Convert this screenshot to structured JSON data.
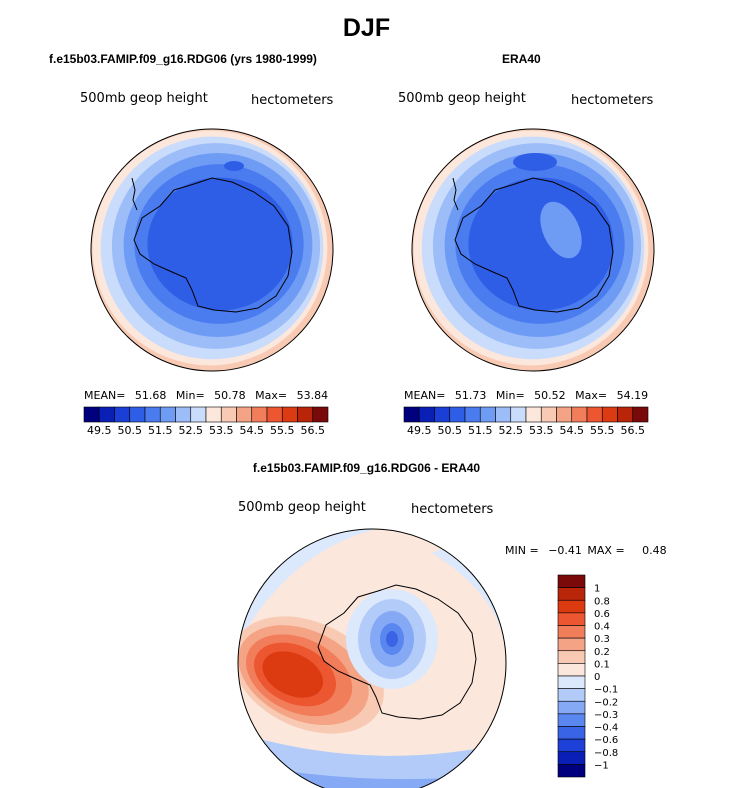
{
  "page_title": "DJF",
  "colors": {
    "abs_scale": [
      "#00007f",
      "#0a1fb5",
      "#1b3fd6",
      "#2f5ee6",
      "#4a7cef",
      "#6e9cf5",
      "#9dbdf8",
      "#cadcfb",
      "#fbe7dc",
      "#f8c9b3",
      "#f5a385",
      "#f27d5a",
      "#ec5630",
      "#dc3b12",
      "#b82508",
      "#7a0a0a"
    ],
    "diff_scale": [
      "#00007f",
      "#0a1fb5",
      "#1d40d8",
      "#3a64e6",
      "#5a86ef",
      "#86a9f5",
      "#b2cbf9",
      "#dce8fb",
      "#fbe7dc",
      "#f8c9b3",
      "#f5a385",
      "#f27d5a",
      "#ec5630",
      "#dc3b12",
      "#b82508",
      "#7a0a0a"
    ]
  },
  "chart_data": [
    {
      "type": "heatmap",
      "title": "f.e15b03.FAMIP.f09_g16.RDG06 (yrs 1980-1999)",
      "left_label": "500mb geop height",
      "right_label": "hectometers",
      "stats": {
        "mean_label": "MEAN=",
        "mean": "51.68",
        "min_label": "Min=",
        "min": "50.78",
        "max_label": "Max=",
        "max": "53.84"
      },
      "colorbar_ticks": [
        "49.5",
        "50.5",
        "51.5",
        "52.5",
        "53.5",
        "54.5",
        "55.5",
        "56.5"
      ],
      "contour_levels": [
        49.5,
        50,
        50.5,
        51,
        51.5,
        52,
        52.5,
        53,
        53.5,
        54,
        54.5,
        55,
        55.5,
        56,
        56.5
      ],
      "rings": [
        {
          "value": 53.5,
          "level_index": 8
        },
        {
          "value": 53.0,
          "level_index": 7
        },
        {
          "value": 52.5,
          "level_index": 6
        },
        {
          "value": 52.0,
          "level_index": 5
        },
        {
          "value": 51.5,
          "level_index": 4
        },
        {
          "value": 51.0,
          "level_index": 3
        }
      ]
    },
    {
      "type": "heatmap",
      "title": "ERA40",
      "left_label": "500mb geop height",
      "right_label": "hectometers",
      "stats": {
        "mean_label": "MEAN=",
        "mean": "51.73",
        "min_label": "Min=",
        "min": "50.52",
        "max_label": "Max=",
        "max": "54.19"
      },
      "colorbar_ticks": [
        "49.5",
        "50.5",
        "51.5",
        "52.5",
        "53.5",
        "54.5",
        "55.5",
        "56.5"
      ],
      "contour_levels": [
        49.5,
        50,
        50.5,
        51,
        51.5,
        52,
        52.5,
        53,
        53.5,
        54,
        54.5,
        55,
        55.5,
        56,
        56.5
      ],
      "rings": [
        {
          "value": 53.5,
          "level_index": 8
        },
        {
          "value": 53.0,
          "level_index": 7
        },
        {
          "value": 52.5,
          "level_index": 6
        },
        {
          "value": 52.0,
          "level_index": 5
        },
        {
          "value": 51.5,
          "level_index": 4
        },
        {
          "value": 51.0,
          "level_index": 3
        }
      ]
    },
    {
      "type": "heatmap",
      "title": "f.e15b03.FAMIP.f09_g16.RDG06 - ERA40",
      "left_label": "500mb geop height",
      "right_label": "hectometers",
      "stats": {
        "min_label": "MIN =",
        "min": "−0.41",
        "max_label": "MAX =",
        "max": "0.48"
      },
      "colorbar_ticks": [
        "1",
        "0.8",
        "0.6",
        "0.4",
        "0.3",
        "0.2",
        "0.1",
        "0",
        "−0.1",
        "−0.2",
        "−0.3",
        "−0.4",
        "−0.6",
        "−0.8",
        "−1"
      ],
      "contour_levels": [
        -1,
        -0.8,
        -0.6,
        -0.4,
        -0.3,
        -0.2,
        -0.1,
        0,
        0.1,
        0.2,
        0.3,
        0.4,
        0.6,
        0.8,
        1
      ]
    }
  ]
}
